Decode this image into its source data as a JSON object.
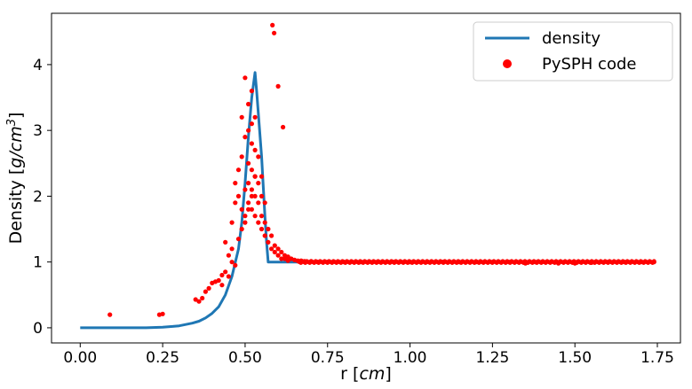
{
  "chart_data": {
    "type": "line+scatter",
    "xlabel": "r [cm]",
    "xlabel_plain": "r [",
    "xlabel_unit": "cm",
    "xlabel_close": "]",
    "ylabel_plain": "Density [",
    "ylabel_unit": "g/cm",
    "ylabel_sup": "3",
    "ylabel_close": "]",
    "xlim": [
      -0.087,
      1.82
    ],
    "ylim": [
      -0.23,
      4.78
    ],
    "xticks": [
      0.0,
      0.25,
      0.5,
      0.75,
      1.0,
      1.25,
      1.5,
      1.75
    ],
    "xtick_labels": [
      "0.00",
      "0.25",
      "0.50",
      "0.75",
      "1.00",
      "1.25",
      "1.50",
      "1.75"
    ],
    "yticks": [
      0,
      1,
      2,
      3,
      4
    ],
    "ytick_labels": [
      "0",
      "1",
      "2",
      "3",
      "4"
    ],
    "grid": false,
    "legend_position": "top-right",
    "series": [
      {
        "name": "density",
        "kind": "line",
        "color": "#1f77b4",
        "x": [
          0.0,
          0.1,
          0.2,
          0.25,
          0.28,
          0.3,
          0.32,
          0.34,
          0.36,
          0.38,
          0.4,
          0.42,
          0.44,
          0.46,
          0.48,
          0.49,
          0.5,
          0.51,
          0.52,
          0.53,
          0.535,
          0.55,
          0.56,
          0.565,
          0.57,
          0.6,
          0.7,
          1.0,
          1.5,
          1.74
        ],
        "y": [
          0.0,
          0.0,
          0.0,
          0.01,
          0.02,
          0.03,
          0.05,
          0.07,
          0.1,
          0.15,
          0.22,
          0.32,
          0.5,
          0.78,
          1.2,
          1.6,
          2.2,
          2.9,
          3.5,
          3.88,
          3.6,
          2.6,
          1.7,
          1.3,
          1.0,
          1.0,
          1.0,
          1.0,
          1.0,
          1.0
        ]
      },
      {
        "name": "PySPH code",
        "kind": "scatter",
        "color": "#ff0000",
        "x": [
          0.09,
          0.24,
          0.25,
          0.35,
          0.36,
          0.37,
          0.38,
          0.39,
          0.4,
          0.41,
          0.42,
          0.43,
          0.44,
          0.45,
          0.46,
          0.46,
          0.47,
          0.47,
          0.48,
          0.48,
          0.49,
          0.49,
          0.49,
          0.5,
          0.5,
          0.5,
          0.5,
          0.51,
          0.51,
          0.51,
          0.51,
          0.51,
          0.52,
          0.52,
          0.52,
          0.52,
          0.52,
          0.52,
          0.53,
          0.53,
          0.53,
          0.53,
          0.53,
          0.54,
          0.54,
          0.54,
          0.54,
          0.55,
          0.55,
          0.55,
          0.55,
          0.56,
          0.56,
          0.56,
          0.57,
          0.57,
          0.58,
          0.58,
          0.59,
          0.59,
          0.6,
          0.6,
          0.61,
          0.61,
          0.62,
          0.62,
          0.63,
          0.63,
          0.64,
          0.65,
          0.66,
          0.67,
          0.68,
          0.7,
          0.72,
          0.75,
          0.8,
          0.85,
          0.9,
          0.95,
          1.0,
          1.05,
          1.1,
          1.15,
          1.2,
          1.25,
          1.3,
          1.35,
          1.38,
          1.4,
          1.45,
          1.5,
          1.55,
          1.6,
          1.65,
          1.7,
          1.74,
          0.583,
          0.588,
          0.6,
          0.615,
          0.47,
          0.46,
          0.45,
          0.44,
          0.43,
          0.48,
          0.49,
          0.5,
          0.51,
          0.52,
          0.53
        ],
        "y": [
          0.2,
          0.2,
          0.21,
          0.43,
          0.4,
          0.45,
          0.55,
          0.6,
          0.68,
          0.7,
          0.72,
          0.65,
          0.85,
          0.78,
          1.2,
          1.6,
          1.9,
          2.2,
          2.0,
          2.4,
          2.6,
          1.8,
          3.2,
          2.9,
          3.8,
          2.1,
          1.7,
          3.4,
          3.0,
          2.5,
          2.2,
          1.9,
          3.6,
          3.1,
          2.8,
          2.4,
          2.1,
          1.8,
          3.2,
          2.7,
          2.3,
          2.0,
          1.7,
          2.6,
          2.2,
          1.9,
          1.6,
          2.3,
          2.0,
          1.7,
          1.5,
          1.9,
          1.6,
          1.4,
          1.5,
          1.3,
          1.4,
          1.2,
          1.25,
          1.15,
          1.2,
          1.1,
          1.15,
          1.05,
          1.1,
          1.05,
          1.08,
          1.02,
          1.05,
          1.03,
          1.02,
          1.02,
          1.01,
          1.01,
          1.0,
          1.0,
          1.0,
          1.0,
          1.0,
          1.0,
          1.0,
          1.0,
          1.0,
          1.0,
          1.0,
          1.0,
          1.0,
          0.98,
          1.0,
          1.0,
          0.98,
          0.98,
          0.99,
          1.0,
          1.0,
          1.0,
          1.0,
          4.6,
          4.48,
          3.67,
          3.05,
          0.95,
          1.0,
          1.1,
          1.3,
          0.8,
          1.35,
          1.5,
          1.6,
          1.8,
          2.0,
          2.3
        ]
      }
    ]
  }
}
